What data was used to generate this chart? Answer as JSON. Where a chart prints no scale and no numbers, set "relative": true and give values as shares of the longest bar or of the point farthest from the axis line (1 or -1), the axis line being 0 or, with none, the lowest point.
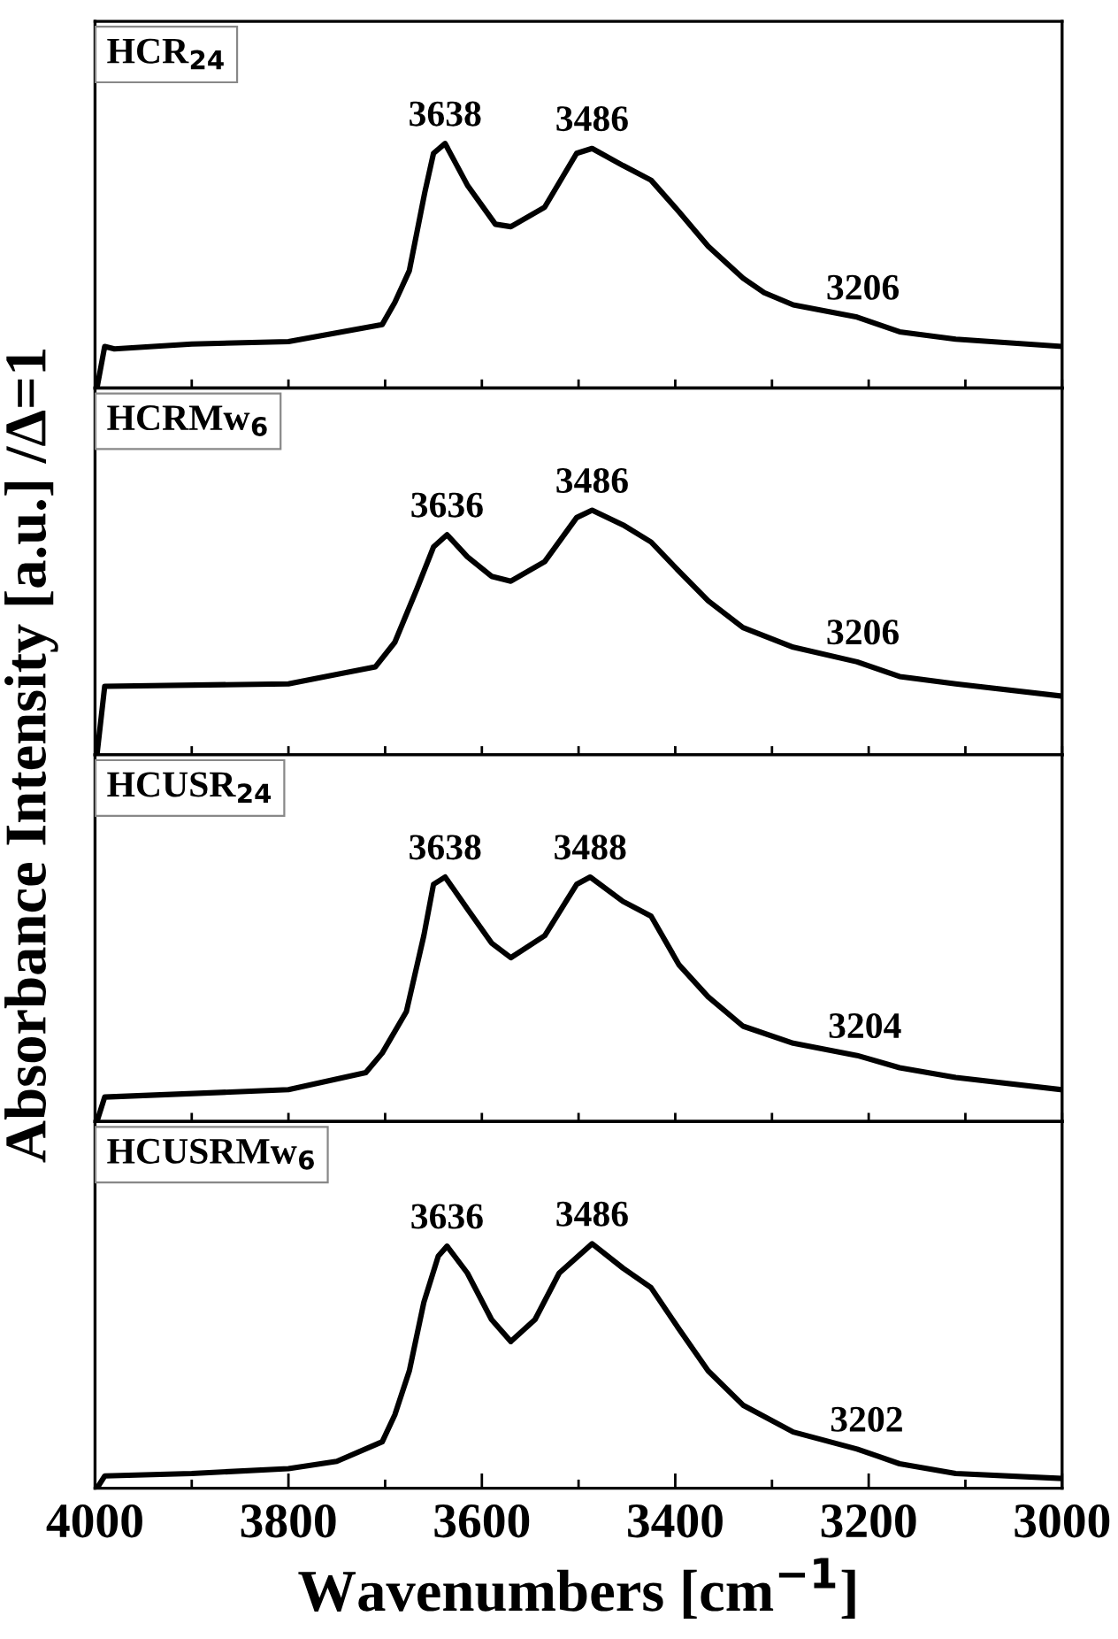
{
  "chart_data": [
    {
      "type": "line",
      "relative": true,
      "title": "HCR$_{24}$",
      "ylabel": "Absorbance Intensity [a.u.] /Δ=1",
      "xlim": [
        4000,
        3000
      ],
      "xticks": [
        {
          "value": 4000,
          "label": null
        },
        {
          "value": 3900,
          "label": null
        },
        {
          "value": 3800,
          "label": null
        },
        {
          "value": 3700,
          "label": null
        },
        {
          "value": 3600,
          "label": null
        },
        {
          "value": 3500,
          "label": null
        },
        {
          "value": 3400,
          "label": null
        },
        {
          "value": 3300,
          "label": null
        },
        {
          "value": 3200,
          "label": null
        },
        {
          "value": 3100,
          "label": null
        },
        {
          "value": 3000,
          "label": null
        }
      ],
      "tick_labels": false,
      "series": [
        {
          "color": "#000000",
          "x": [
            3998,
            3990,
            3980,
            3900,
            3800,
            3703,
            3690,
            3675,
            3659,
            3650,
            3638,
            3615,
            3586,
            3570,
            3535,
            3502,
            3486,
            3454,
            3425,
            3396,
            3366,
            3330,
            3308,
            3278,
            3212,
            3168,
            3110,
            3000
          ],
          "values": [
            0,
            0.17,
            0.16,
            0.18,
            0.19,
            0.26,
            0.35,
            0.48,
            0.8,
            0.96,
            1,
            0.83,
            0.67,
            0.66,
            0.74,
            0.96,
            0.98,
            0.91,
            0.85,
            0.72,
            0.58,
            0.45,
            0.39,
            0.34,
            0.29,
            0.23,
            0.2,
            0.17
          ]
        }
      ],
      "annotations": [
        {
          "text": "3638",
          "x": 3638,
          "y": 1
        },
        {
          "text": "3486",
          "x": 3486,
          "y": 0.98
        },
        {
          "text": "3206",
          "x": 3206,
          "y": 0.29
        }
      ]
    },
    {
      "type": "line",
      "relative": true,
      "title": "HCRMw$_{6}$",
      "xlim": [
        4000,
        3000
      ],
      "xticks": [
        {
          "value": 4000,
          "label": null
        },
        {
          "value": 3900,
          "label": null
        },
        {
          "value": 3800,
          "label": null
        },
        {
          "value": 3700,
          "label": null
        },
        {
          "value": 3600,
          "label": null
        },
        {
          "value": 3500,
          "label": null
        },
        {
          "value": 3400,
          "label": null
        },
        {
          "value": 3300,
          "label": null
        },
        {
          "value": 3200,
          "label": null
        },
        {
          "value": 3100,
          "label": null
        },
        {
          "value": 3000,
          "label": null
        }
      ],
      "tick_labels": false,
      "series": [
        {
          "color": "#000000",
          "x": [
            3998,
            3990,
            3800,
            3710,
            3690,
            3667,
            3650,
            3636,
            3615,
            3590,
            3570,
            3535,
            3502,
            3486,
            3454,
            3425,
            3396,
            3366,
            3330,
            3278,
            3212,
            3168,
            3110,
            3000
          ],
          "values": [
            0,
            0.28,
            0.29,
            0.36,
            0.46,
            0.68,
            0.85,
            0.9,
            0.81,
            0.73,
            0.71,
            0.79,
            0.97,
            1,
            0.94,
            0.87,
            0.75,
            0.63,
            0.52,
            0.44,
            0.38,
            0.32,
            0.29,
            0.24
          ]
        }
      ],
      "annotations": [
        {
          "text": "3636",
          "x": 3636,
          "y": 0.9
        },
        {
          "text": "3486",
          "x": 3486,
          "y": 1
        },
        {
          "text": "3206",
          "x": 3206,
          "y": 0.38
        }
      ]
    },
    {
      "type": "line",
      "relative": true,
      "title": "HCUSR$_{24}$",
      "xlim": [
        4000,
        3000
      ],
      "xticks": [
        {
          "value": 4000,
          "label": null
        },
        {
          "value": 3900,
          "label": null
        },
        {
          "value": 3800,
          "label": null
        },
        {
          "value": 3700,
          "label": null
        },
        {
          "value": 3600,
          "label": null
        },
        {
          "value": 3500,
          "label": null
        },
        {
          "value": 3400,
          "label": null
        },
        {
          "value": 3300,
          "label": null
        },
        {
          "value": 3200,
          "label": null
        },
        {
          "value": 3100,
          "label": null
        },
        {
          "value": 3000,
          "label": null
        }
      ],
      "tick_labels": false,
      "series": [
        {
          "color": "#000000",
          "x": [
            3998,
            3990,
            3800,
            3720,
            3703,
            3678,
            3660,
            3650,
            3638,
            3615,
            3590,
            3570,
            3535,
            3502,
            3488,
            3454,
            3425,
            3396,
            3366,
            3330,
            3278,
            3212,
            3168,
            3110,
            3000
          ],
          "values": [
            0,
            0.1,
            0.13,
            0.2,
            0.28,
            0.45,
            0.76,
            0.97,
            1,
            0.87,
            0.73,
            0.67,
            0.76,
            0.97,
            1,
            0.9,
            0.84,
            0.64,
            0.51,
            0.39,
            0.32,
            0.27,
            0.22,
            0.18,
            0.13
          ]
        }
      ],
      "annotations": [
        {
          "text": "3638",
          "x": 3638,
          "y": 1
        },
        {
          "text": "3488",
          "x": 3488,
          "y": 1
        },
        {
          "text": "3204",
          "x": 3204,
          "y": 0.27
        }
      ]
    },
    {
      "type": "line",
      "relative": true,
      "title": "HCUSRMw$_{6}$",
      "xlabel": "Wavenumbers [cm$^{−1}$]",
      "xlim": [
        4000,
        3000
      ],
      "xticks": [
        4000,
        {
          "value": 3900,
          "label": null
        },
        3800,
        {
          "value": 3700,
          "label": null
        },
        3600,
        {
          "value": 3500,
          "label": null
        },
        3400,
        {
          "value": 3300,
          "label": null
        },
        3200,
        {
          "value": 3100,
          "label": null
        },
        3000
      ],
      "tick_labels": "x",
      "series": [
        {
          "color": "#000000",
          "x": [
            3998,
            3990,
            3900,
            3800,
            3750,
            3703,
            3690,
            3675,
            3660,
            3645,
            3636,
            3615,
            3590,
            3570,
            3545,
            3520,
            3486,
            3454,
            3425,
            3396,
            3366,
            3330,
            3278,
            3212,
            3190,
            3168,
            3110,
            3000
          ],
          "values": [
            0,
            0.05,
            0.06,
            0.08,
            0.11,
            0.19,
            0.3,
            0.48,
            0.76,
            0.95,
            0.99,
            0.88,
            0.69,
            0.6,
            0.69,
            0.88,
            1,
            0.9,
            0.82,
            0.65,
            0.48,
            0.34,
            0.23,
            0.16,
            0.13,
            0.1,
            0.06,
            0.04
          ]
        }
      ],
      "annotations": [
        {
          "text": "3636",
          "x": 3636,
          "y": 0.99
        },
        {
          "text": "3486",
          "x": 3486,
          "y": 1
        },
        {
          "text": "3202",
          "x": 3202,
          "y": 0.16
        }
      ]
    }
  ]
}
